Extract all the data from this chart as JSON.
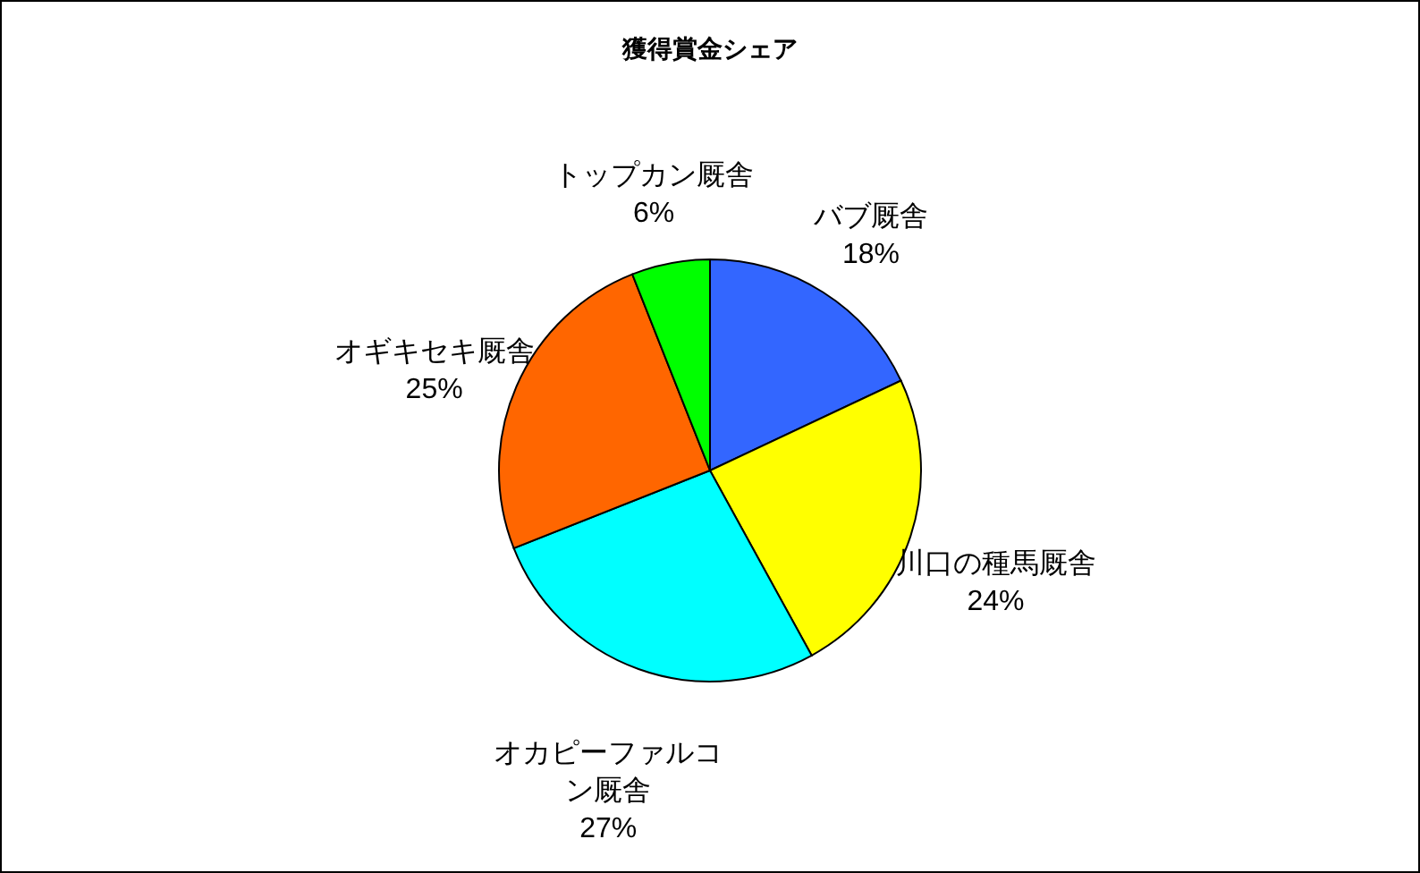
{
  "chart_data": {
    "type": "pie",
    "title": "獲得賞金シェア",
    "categories": [
      "バブ厩舎",
      "川口の種馬厩舎",
      "オカピーファルコン厩舎",
      "オギキセキ厩舎",
      "トップカン厩舎"
    ],
    "values": [
      18,
      24,
      27,
      25,
      6
    ],
    "value_labels": [
      "18%",
      "24%",
      "27%",
      "25%",
      "6%"
    ],
    "colors": [
      "#3366ff",
      "#ffff00",
      "#00ffff",
      "#ff6600",
      "#00ff00"
    ]
  }
}
